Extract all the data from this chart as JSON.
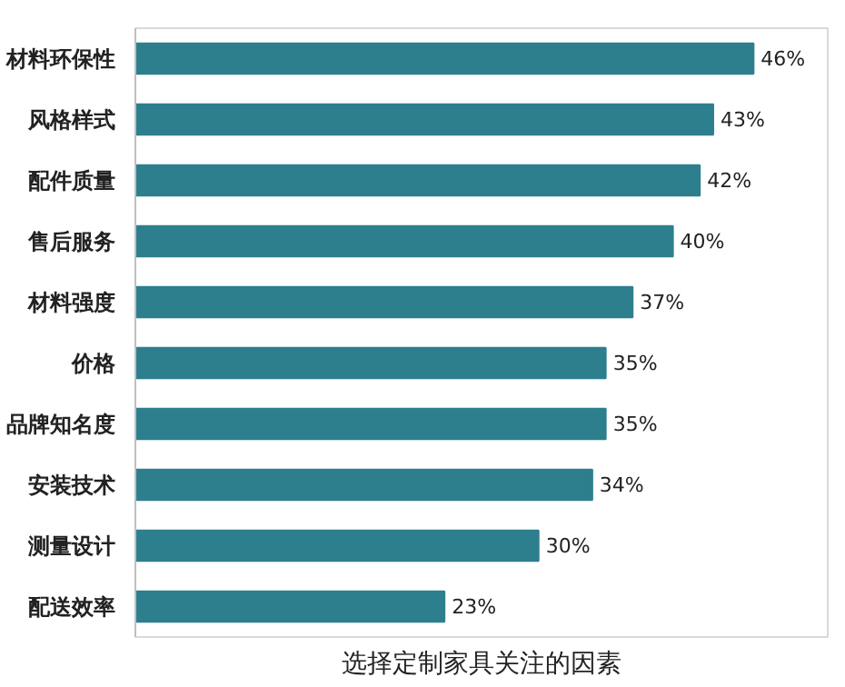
{
  "chart_data": {
    "type": "bar",
    "orientation": "horizontal",
    "title": "选择定制家具关注的因素",
    "categories": [
      "材料环保性",
      "风格样式",
      "配件质量",
      "售后服务",
      "材料强度",
      "价格",
      "品牌知名度",
      "安装技术",
      "测量设计",
      "配送效率"
    ],
    "values": [
      46,
      43,
      42,
      40,
      37,
      35,
      35,
      34,
      30,
      23
    ],
    "value_labels": [
      "46%",
      "43%",
      "42%",
      "40%",
      "37%",
      "35%",
      "35%",
      "34%",
      "30%",
      "23%"
    ],
    "color": "#2e7f8e",
    "grid": false
  }
}
